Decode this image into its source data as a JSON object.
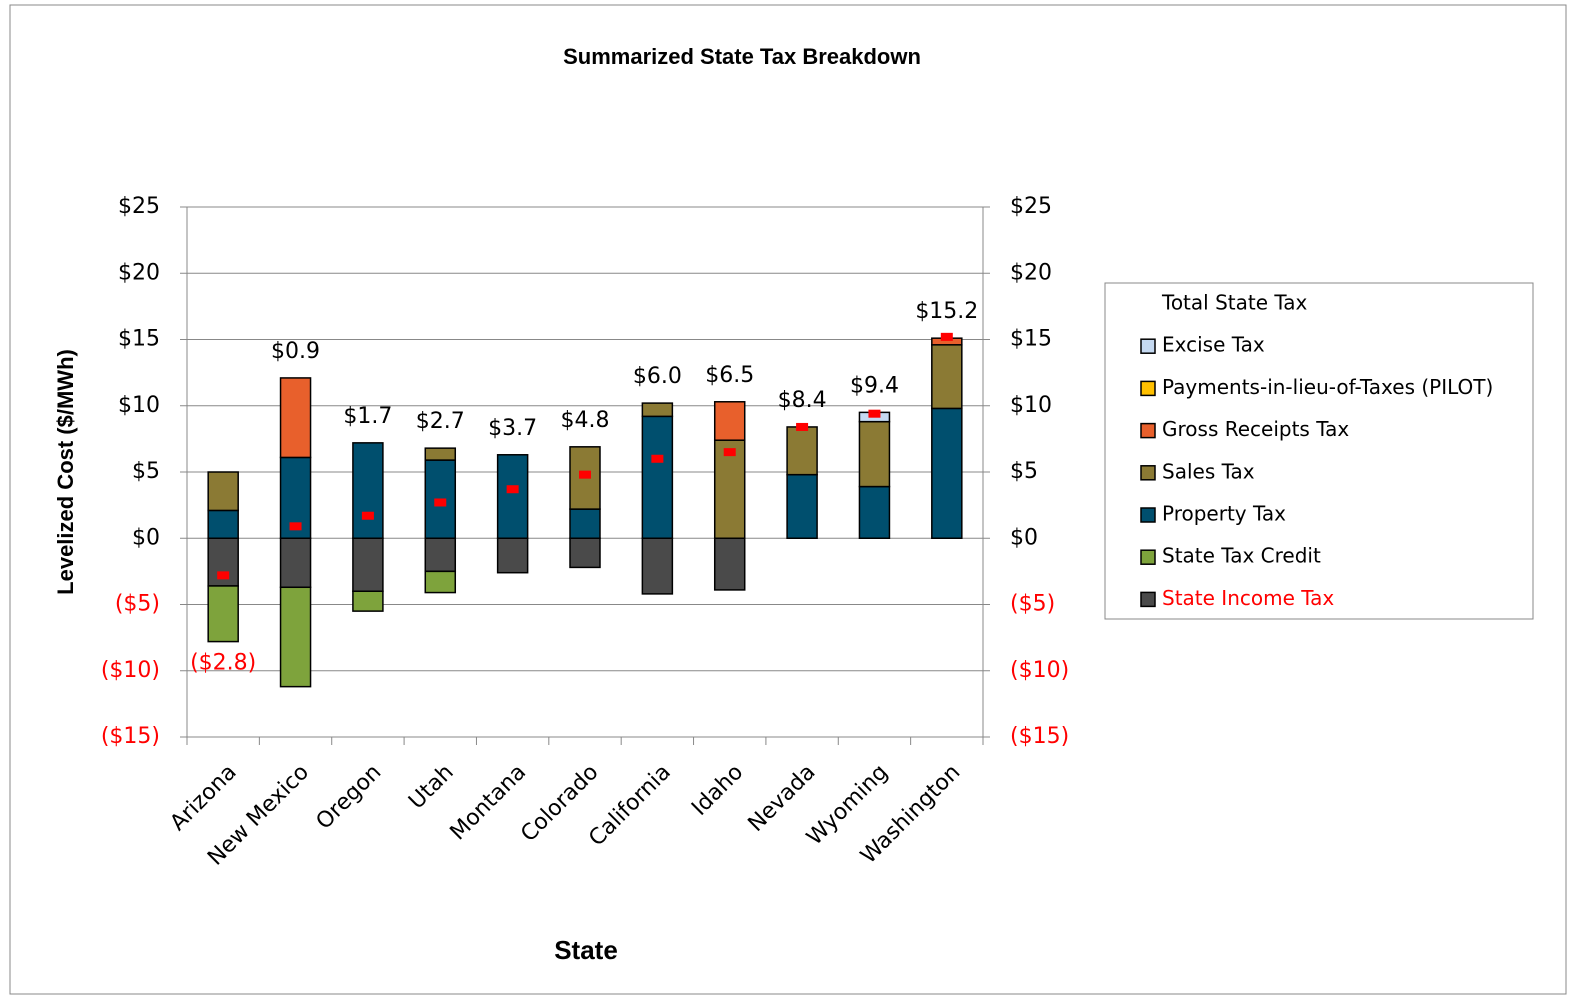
{
  "chart_data": {
    "type": "stacked_bar",
    "title": "Summarized State Tax Breakdown",
    "x_label": "State",
    "y_label": "Levelized Cost ($/MWh)",
    "categories": [
      "Arizona",
      "New Mexico",
      "Oregon",
      "Utah",
      "Montana",
      "Colorado",
      "California",
      "Idaho",
      "Nevada",
      "Wyoming",
      "Washington"
    ],
    "series": [
      {
        "name": "State Income Tax",
        "color": "#4a4a4a",
        "values": [
          -3.6,
          -3.7,
          -4.0,
          -2.5,
          -2.6,
          -2.2,
          -4.2,
          -3.9,
          0,
          0,
          0
        ]
      },
      {
        "name": "State Tax Credit",
        "color": "#7ea33c",
        "values": [
          -4.2,
          -7.5,
          -1.5,
          -1.6,
          0,
          0,
          0,
          0,
          0,
          0,
          0
        ]
      },
      {
        "name": "Property Tax",
        "color": "#004f6e",
        "values": [
          2.1,
          6.1,
          7.2,
          5.9,
          6.3,
          2.2,
          9.2,
          0,
          4.8,
          3.9,
          9.8
        ]
      },
      {
        "name": "Sales Tax",
        "color": "#8b7a34",
        "values": [
          2.9,
          0,
          0,
          0.9,
          0,
          4.7,
          1.0,
          7.4,
          3.6,
          4.9,
          4.8
        ]
      },
      {
        "name": "Gross Receipts Tax",
        "color": "#e8602c",
        "values": [
          0,
          6.0,
          0,
          0,
          0,
          0,
          0,
          2.9,
          0,
          0,
          0.5
        ]
      },
      {
        "name": "Payments-in-lieu-of-Taxes (PILOT)",
        "color": "#ffc000",
        "values": [
          0,
          0,
          0,
          0,
          0,
          0,
          0,
          0,
          0,
          0,
          0
        ]
      },
      {
        "name": "Excise Tax",
        "color": "#c5d9f1",
        "values": [
          0,
          0,
          0,
          0,
          0,
          0,
          0,
          0,
          0,
          0.7,
          0
        ]
      }
    ],
    "total": {
      "name": "Total State Tax",
      "color": "#ff0000",
      "values": [
        -2.8,
        0.9,
        1.7,
        2.7,
        3.7,
        4.8,
        6.0,
        6.5,
        8.4,
        9.4,
        15.2
      ],
      "value_labels": [
        "($2.8)",
        "$0.9",
        "$1.7",
        "$2.7",
        "$3.7",
        "$4.8",
        "$6.0",
        "$6.5",
        "$8.4",
        "$9.4",
        "$15.2"
      ]
    },
    "ylim": [
      -15,
      25
    ],
    "yticks": [
      {
        "value": 25,
        "label": "$25"
      },
      {
        "value": 20,
        "label": "$20"
      },
      {
        "value": 15,
        "label": "$15"
      },
      {
        "value": 10,
        "label": "$10"
      },
      {
        "value": 5,
        "label": "$5"
      },
      {
        "value": 0,
        "label": "$0"
      },
      {
        "value": -5,
        "label": "($5)"
      },
      {
        "value": -10,
        "label": "($10)"
      },
      {
        "value": -15,
        "label": "($15)"
      }
    ],
    "y2lim": [
      -15,
      25
    ],
    "y2ticks": [
      {
        "value": 25,
        "label": "$25"
      },
      {
        "value": 20,
        "label": "$20"
      },
      {
        "value": 15,
        "label": "$15"
      },
      {
        "value": 10,
        "label": "$10"
      },
      {
        "value": 5,
        "label": "$5"
      },
      {
        "value": 0,
        "label": "$0"
      },
      {
        "value": -5,
        "label": "($5)"
      },
      {
        "value": -10,
        "label": "($10)"
      },
      {
        "value": -15,
        "label": "($15)"
      }
    ],
    "grid": true,
    "legend": "right"
  }
}
